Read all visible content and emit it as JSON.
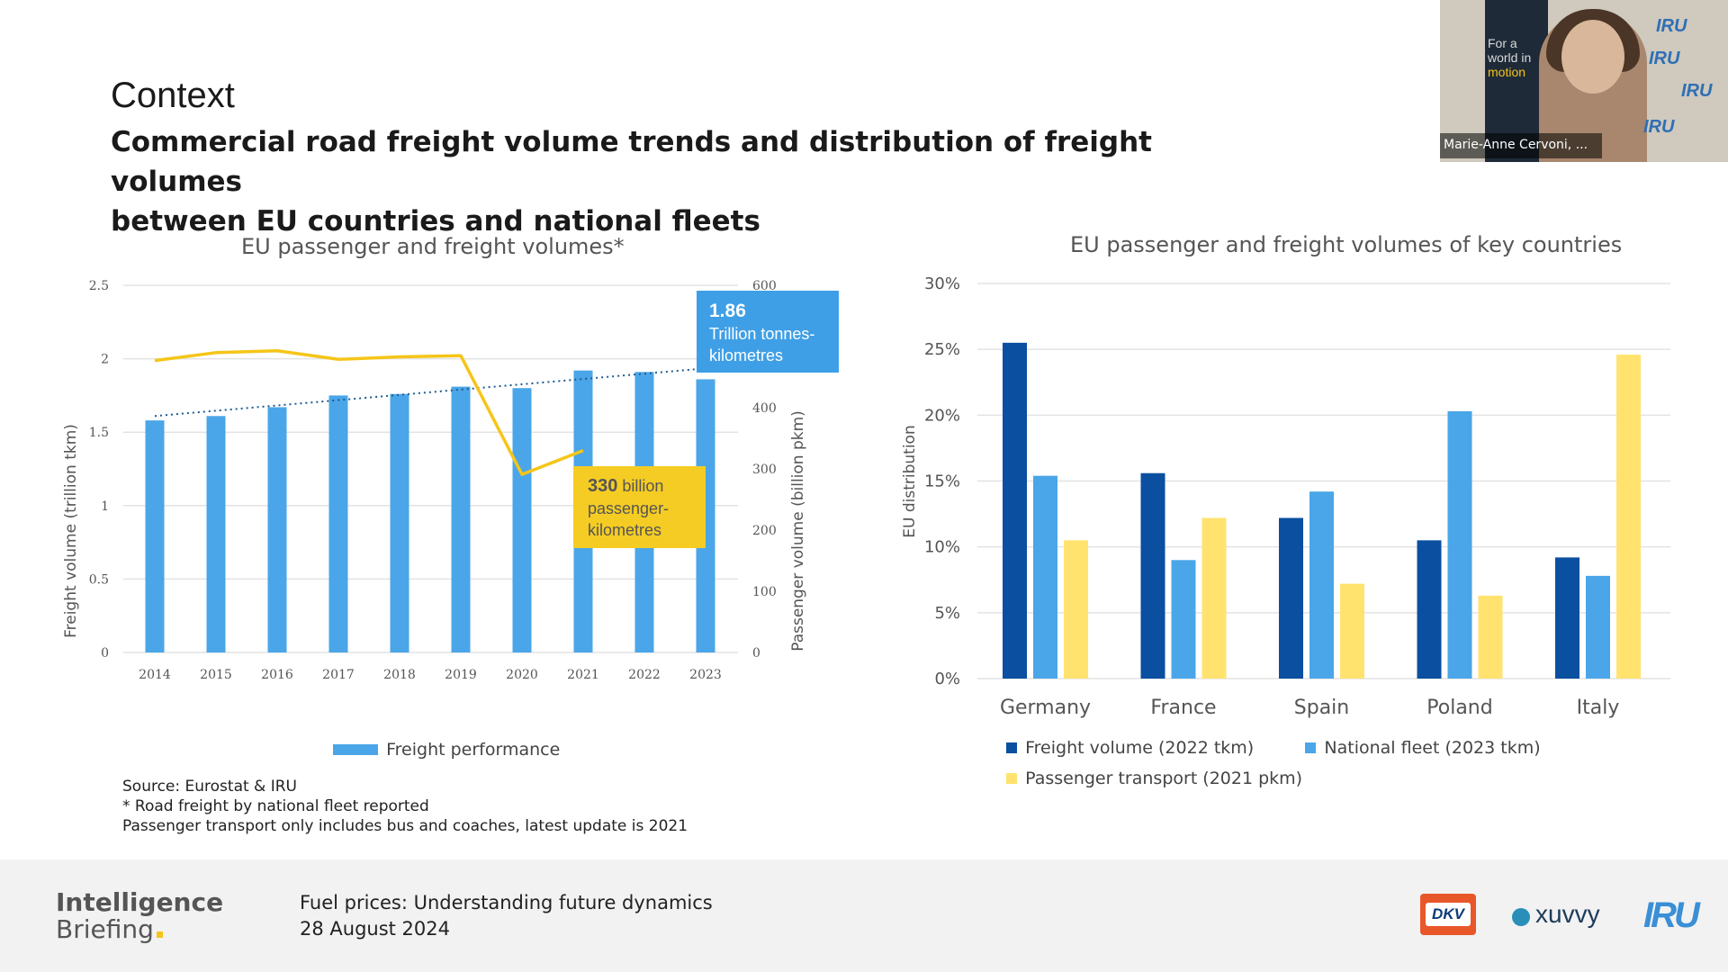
{
  "slide": {
    "title": "Context",
    "subtitle_line1": "Commercial road freight volume trends and distribution of freight volumes",
    "subtitle_line2": "between EU countries and national fleets"
  },
  "left_chart": {
    "title": "EU passenger and freight volumes*",
    "callout_freight_value": "1.86",
    "callout_freight_line1": "Trillion tonnes-",
    "callout_freight_line2": "kilometres",
    "callout_passenger_bold": "330",
    "callout_passenger_line1": " billion",
    "callout_passenger_line2": "passenger-",
    "callout_passenger_line3": "kilometres",
    "legend_label": "Freight performance",
    "colors": {
      "bar": "#4aa6e8",
      "line": "#f5c518",
      "trend": "#1f5a8f",
      "callout_blue": "#3f9fe6",
      "callout_yellow": "#f5cc23"
    }
  },
  "right_chart": {
    "title": "EU passenger and freight volumes of key countries",
    "colors": {
      "freight": "#0a4fa0",
      "fleet": "#4aa6e8",
      "passenger": "#ffe36e"
    }
  },
  "chart_data": [
    {
      "type": "bar",
      "title": "EU passenger and freight volumes*",
      "categories": [
        "2014",
        "2015",
        "2016",
        "2017",
        "2018",
        "2019",
        "2020",
        "2021",
        "2022",
        "2023"
      ],
      "series": [
        {
          "name": "Freight performance",
          "axis": "left",
          "values": [
            1.58,
            1.61,
            1.67,
            1.75,
            1.76,
            1.81,
            1.8,
            1.92,
            1.91,
            1.86
          ]
        },
        {
          "axis": "right",
          "type": "line",
          "values": [
            477,
            490,
            493,
            479,
            483,
            485,
            291,
            330,
            null,
            null
          ]
        }
      ],
      "trendline": {
        "style": "dotted",
        "start": 1.61,
        "end": 1.93
      },
      "ylabel": "Freight volume (trillion tkm)",
      "ylabel_right": "Passenger volume (billion pkm)",
      "ylim": [
        0,
        2.5
      ],
      "ylim_right": [
        0,
        600
      ],
      "yticks": [
        "0",
        "0.5",
        "1",
        "1.5",
        "2",
        "2.5"
      ],
      "yticks_right": [
        "0",
        "100",
        "200",
        "300",
        "400",
        "600"
      ],
      "grid": true,
      "legend": "bottom"
    },
    {
      "type": "bar",
      "title": "EU passenger and freight volumes of key countries",
      "categories": [
        "Germany",
        "France",
        "Spain",
        "Poland",
        "Italy"
      ],
      "series": [
        {
          "name": "Freight volume (2022 tkm)",
          "values": [
            25.5,
            15.6,
            12.2,
            10.5,
            9.2
          ]
        },
        {
          "name": "National fleet (2023 tkm)",
          "values": [
            15.4,
            9.0,
            14.2,
            20.3,
            7.8
          ]
        },
        {
          "name": "Passenger transport (2021 pkm)",
          "values": [
            10.5,
            12.2,
            7.2,
            6.3,
            24.6
          ]
        }
      ],
      "ylabel": "EU distribution",
      "ylim": [
        0,
        30
      ],
      "yticks": [
        "0%",
        "5%",
        "10%",
        "15%",
        "20%",
        "25%",
        "30%"
      ],
      "grid": true,
      "legend": "bottom"
    }
  ],
  "notes": {
    "line1": "Source: Eurostat & IRU",
    "line2": "* Road freight by national fleet reported",
    "line3": "Passenger transport only includes bus and coaches, latest update is 2021"
  },
  "footer": {
    "brand_line1": "Intelligence",
    "brand_line2": "Briefing",
    "event_title": "Fuel prices: Understanding future dynamics",
    "event_date": "28 August 2024",
    "logo_dkv": "DKV",
    "logo_xuvvy": "xuvvy",
    "logo_iru": "IRU"
  },
  "video_tile": {
    "participant_name": "Marie-Anne Cervoni, ...",
    "banner_line1": "For a",
    "banner_line2": "world in",
    "banner_line3": "motion",
    "backdrop_logo": "IRU"
  }
}
